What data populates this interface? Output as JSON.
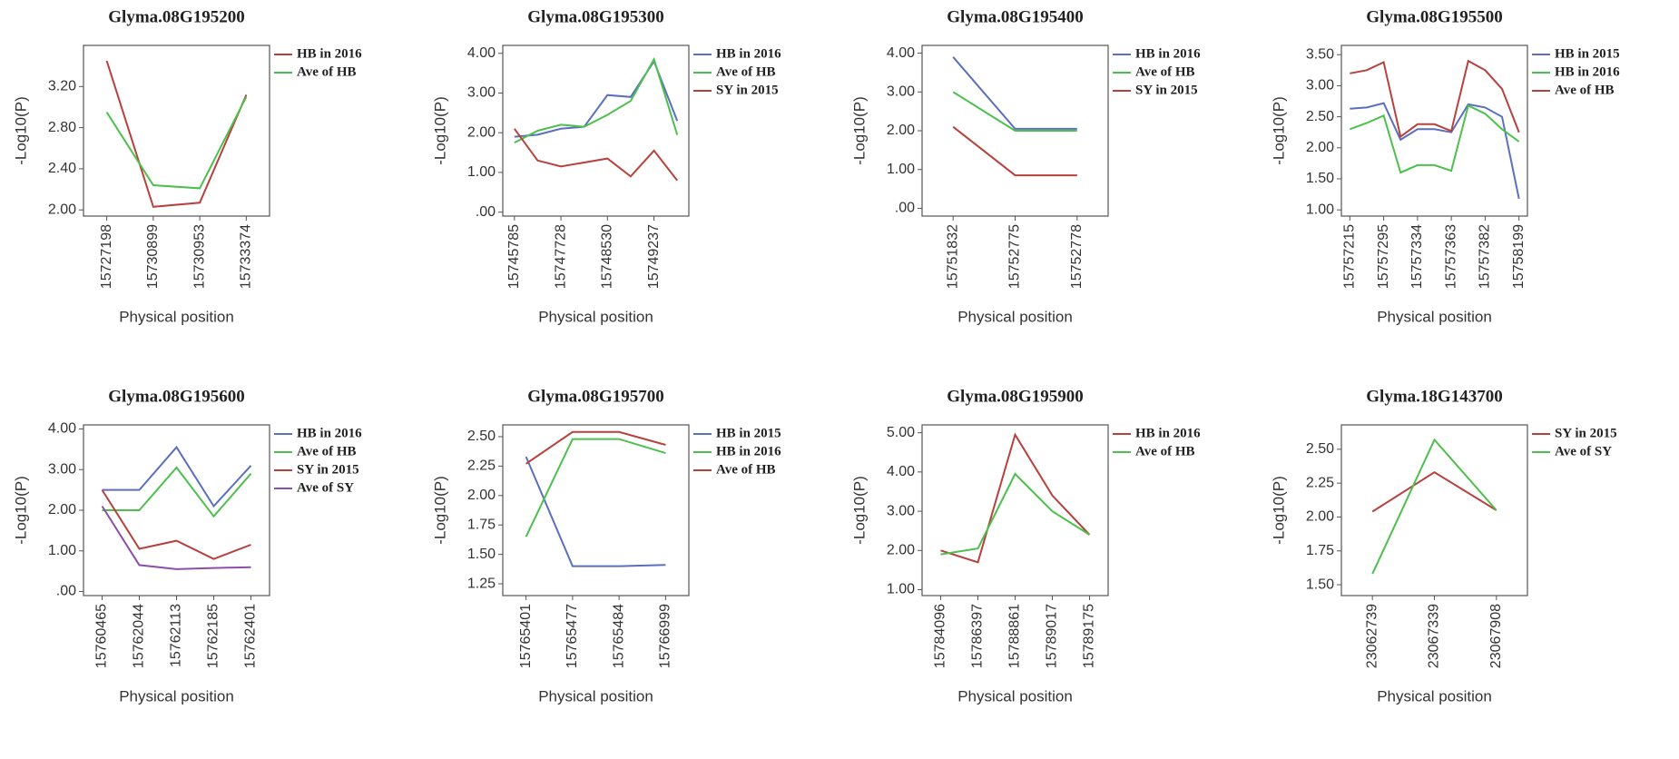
{
  "chart_data": [
    {
      "type": "line",
      "title": "Glyma.08G195200",
      "x_label": "Physical position",
      "y_label": "-Log10(P)",
      "categories": [
        "15727198",
        "15730899",
        "15730953",
        "15733374"
      ],
      "series": [
        {
          "name": "HB in 2016",
          "color": "#b8403d",
          "values": [
            3.45,
            2.03,
            2.07,
            3.12
          ]
        },
        {
          "name": "Ave of HB",
          "color": "#4cc04c",
          "values": [
            2.95,
            2.24,
            2.21,
            3.1
          ]
        }
      ],
      "ylim": [
        1.94,
        3.6
      ],
      "yticks": [
        {
          "value": 2.0,
          "label": "2.00"
        },
        {
          "value": 2.4,
          "label": "2.40"
        },
        {
          "value": 2.8,
          "label": "2.80"
        },
        {
          "value": 3.2,
          "label": "3.20"
        }
      ]
    },
    {
      "type": "line",
      "title": "Glyma.08G195300",
      "x_label": "Physical position",
      "y_label": "-Log10(P)",
      "categories": [
        "15745785",
        null,
        "15747728",
        null,
        "15748530",
        null,
        "15749237",
        null
      ],
      "series": [
        {
          "name": "HB in 2016",
          "color": "#5a6fbf",
          "values": [
            1.9,
            1.95,
            2.1,
            2.15,
            2.95,
            2.9,
            3.8,
            2.3
          ]
        },
        {
          "name": "Ave of HB",
          "color": "#4cc04c",
          "values": [
            1.75,
            2.05,
            2.2,
            2.15,
            2.45,
            2.8,
            3.85,
            1.95
          ]
        },
        {
          "name": "SY in 2015",
          "color": "#b8403d",
          "values": [
            2.1,
            1.3,
            1.15,
            1.25,
            1.35,
            0.9,
            1.55,
            0.8
          ]
        }
      ],
      "ylim": [
        -0.1,
        4.2
      ],
      "yticks": [
        {
          "value": 0,
          "label": ".00"
        },
        {
          "value": 1,
          "label": "1.00"
        },
        {
          "value": 2,
          "label": "2.00"
        },
        {
          "value": 3,
          "label": "3.00"
        },
        {
          "value": 4,
          "label": "4.00"
        }
      ]
    },
    {
      "type": "line",
      "title": "Glyma.08G195400",
      "x_label": "Physical position",
      "y_label": "-Log10(P)",
      "categories": [
        "15751832",
        "15752775",
        "15752778"
      ],
      "series": [
        {
          "name": "HB in 2016",
          "color": "#5a6fbf",
          "values": [
            3.9,
            2.05,
            2.05
          ]
        },
        {
          "name": "Ave of HB",
          "color": "#4cc04c",
          "values": [
            3.0,
            2.0,
            2.0
          ]
        },
        {
          "name": "SY in 2015",
          "color": "#b8403d",
          "values": [
            2.1,
            0.85,
            0.85
          ]
        }
      ],
      "ylim": [
        -0.2,
        4.2
      ],
      "yticks": [
        {
          "value": 0,
          "label": ".00"
        },
        {
          "value": 1,
          "label": "1.00"
        },
        {
          "value": 2,
          "label": "2.00"
        },
        {
          "value": 3,
          "label": "3.00"
        },
        {
          "value": 4,
          "label": "4.00"
        }
      ]
    },
    {
      "type": "line",
      "title": "Glyma.08G195500",
      "x_label": "Physical position",
      "y_label": "-Log10(P)",
      "categories": [
        "15757215",
        null,
        "15757295",
        null,
        "15757334",
        null,
        "15757363",
        null,
        "15757382",
        null,
        "15758199"
      ],
      "series": [
        {
          "name": "HB in 2015",
          "color": "#5a6fbf",
          "values": [
            2.63,
            2.65,
            2.72,
            2.13,
            2.3,
            2.3,
            2.25,
            2.7,
            2.65,
            2.5,
            1.18
          ]
        },
        {
          "name": "HB in 2016",
          "color": "#4cc04c",
          "values": [
            2.3,
            2.4,
            2.52,
            1.6,
            1.72,
            1.72,
            1.63,
            2.68,
            2.55,
            2.3,
            2.1
          ]
        },
        {
          "name": "Ave of HB",
          "color": "#b8403d",
          "values": [
            3.2,
            3.25,
            3.38,
            2.18,
            2.38,
            2.38,
            2.27,
            3.4,
            3.25,
            2.95,
            2.25
          ]
        }
      ],
      "ylim": [
        0.9,
        3.65
      ],
      "yticks": [
        {
          "value": 1.0,
          "label": "1.00"
        },
        {
          "value": 1.5,
          "label": "1.50"
        },
        {
          "value": 2.0,
          "label": "2.00"
        },
        {
          "value": 2.5,
          "label": "2.50"
        },
        {
          "value": 3.0,
          "label": "3.00"
        },
        {
          "value": 3.5,
          "label": "3.50"
        }
      ]
    },
    {
      "type": "line",
      "title": "Glyma.08G195600",
      "x_label": "Physical position",
      "y_label": "-Log10(P)",
      "categories": [
        "15760465",
        "15762044",
        "15762113",
        "15762185",
        "15762401"
      ],
      "series": [
        {
          "name": "HB in 2016",
          "color": "#5a6fbf",
          "values": [
            2.5,
            2.5,
            3.55,
            2.1,
            3.1
          ]
        },
        {
          "name": "Ave of HB",
          "color": "#4cc04c",
          "values": [
            2.0,
            2.0,
            3.05,
            1.85,
            2.9
          ]
        },
        {
          "name": "SY in 2015",
          "color": "#b8403d",
          "values": [
            2.5,
            1.05,
            1.25,
            0.8,
            1.15
          ]
        },
        {
          "name": "Ave of SY",
          "color": "#8a4fa8",
          "values": [
            2.1,
            0.65,
            0.55,
            0.58,
            0.6
          ]
        }
      ],
      "ylim": [
        -0.1,
        4.1
      ],
      "yticks": [
        {
          "value": 0,
          "label": ".00"
        },
        {
          "value": 1,
          "label": "1.00"
        },
        {
          "value": 2,
          "label": "2.00"
        },
        {
          "value": 3,
          "label": "3.00"
        },
        {
          "value": 4,
          "label": "4.00"
        }
      ]
    },
    {
      "type": "line",
      "title": "Glyma.08G195700",
      "x_label": "Physical position",
      "y_label": "-Log10(P)",
      "categories": [
        "15765401",
        "15765477",
        "15765484",
        "15766999"
      ],
      "series": [
        {
          "name": "HB in 2015",
          "color": "#5a6fbf",
          "values": [
            2.33,
            1.4,
            1.4,
            1.41
          ]
        },
        {
          "name": "HB in 2016",
          "color": "#4cc04c",
          "values": [
            1.65,
            2.48,
            2.48,
            2.36
          ]
        },
        {
          "name": "Ave of HB",
          "color": "#b8403d",
          "values": [
            2.27,
            2.54,
            2.54,
            2.43
          ]
        }
      ],
      "ylim": [
        1.15,
        2.6
      ],
      "yticks": [
        {
          "value": 1.25,
          "label": "1.25"
        },
        {
          "value": 1.5,
          "label": "1.50"
        },
        {
          "value": 1.75,
          "label": "1.75"
        },
        {
          "value": 2.0,
          "label": "2.00"
        },
        {
          "value": 2.25,
          "label": "2.25"
        },
        {
          "value": 2.5,
          "label": "2.50"
        }
      ]
    },
    {
      "type": "line",
      "title": "Glyma.08G195900",
      "x_label": "Physical position",
      "y_label": "-Log10(P)",
      "categories": [
        "15784096",
        "15786397",
        "15788861",
        "15789017",
        "15789175"
      ],
      "series": [
        {
          "name": "HB in 2016",
          "color": "#b8403d",
          "values": [
            2.0,
            1.7,
            4.95,
            3.4,
            2.4
          ]
        },
        {
          "name": "Ave of HB",
          "color": "#4cc04c",
          "values": [
            1.9,
            2.05,
            3.95,
            3.0,
            2.4
          ]
        }
      ],
      "ylim": [
        0.85,
        5.2
      ],
      "yticks": [
        {
          "value": 1,
          "label": "1.00"
        },
        {
          "value": 2,
          "label": "2.00"
        },
        {
          "value": 3,
          "label": "3.00"
        },
        {
          "value": 4,
          "label": "4.00"
        },
        {
          "value": 5,
          "label": "5.00"
        }
      ]
    },
    {
      "type": "line",
      "title": "Glyma.18G143700",
      "x_label": "Physical position",
      "y_label": "-Log10(P)",
      "categories": [
        "23062739",
        "23067339",
        "23067908"
      ],
      "series": [
        {
          "name": "SY in 2015",
          "color": "#b8403d",
          "values": [
            2.04,
            2.33,
            2.05
          ]
        },
        {
          "name": "Ave of  SY",
          "color": "#4cc04c",
          "values": [
            1.58,
            2.57,
            2.05
          ]
        }
      ],
      "ylim": [
        1.42,
        2.68
      ],
      "yticks": [
        {
          "value": 1.5,
          "label": "1.50"
        },
        {
          "value": 1.75,
          "label": "1.75"
        },
        {
          "value": 2.0,
          "label": "2.00"
        },
        {
          "value": 2.25,
          "label": "2.25"
        },
        {
          "value": 2.5,
          "label": "2.50"
        }
      ]
    }
  ]
}
